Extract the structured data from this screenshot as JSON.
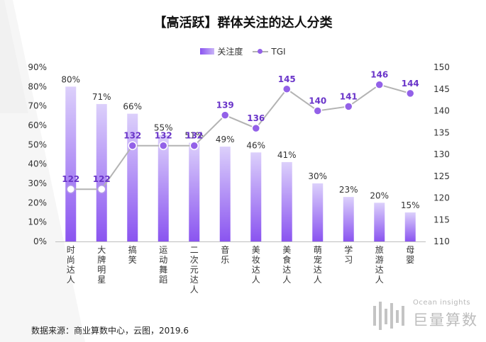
{
  "title": "【高活跃】群体关注的达人分类",
  "legend": {
    "bar_label": "关注度",
    "line_label": "TGI"
  },
  "source": "数据来源：商业算数中心，云图，2019.6",
  "watermark": {
    "en": "Ocean insights",
    "cn": "巨量算数"
  },
  "colors": {
    "bar_top": "#8a54f0",
    "bar_light": "#dcd0fb",
    "line": "#b3b3b3",
    "marker": "#9361e8",
    "tgi_label": "#6a35c9"
  },
  "chart_data": {
    "type": "bar",
    "categories": [
      "时尚达人",
      "大牌明星",
      "搞笑",
      "运动舞蹈",
      "二次元达人",
      "音乐",
      "美妆达人",
      "美食达人",
      "萌宠达人",
      "学习",
      "旅游达人",
      "母婴"
    ],
    "series": [
      {
        "name": "关注度",
        "type": "bar",
        "axis": "left",
        "values": [
          80,
          71,
          66,
          55,
          51,
          49,
          46,
          41,
          30,
          23,
          20,
          15
        ],
        "labels": [
          "80%",
          "71%",
          "66%",
          "55%",
          "51%",
          "49%",
          "46%",
          "41%",
          "30%",
          "23%",
          "20%",
          "15%"
        ]
      },
      {
        "name": "TGI",
        "type": "line",
        "axis": "right",
        "values": [
          122,
          122,
          132,
          132,
          132,
          139,
          136,
          145,
          140,
          141,
          146,
          144
        ],
        "labels": [
          "122",
          "122",
          "132",
          "132",
          "132",
          "139",
          "136",
          "145",
          "140",
          "141",
          "146",
          "144"
        ]
      }
    ],
    "y_left": {
      "ylim": [
        0,
        90
      ],
      "ticks": [
        "0%",
        "10%",
        "20%",
        "30%",
        "40%",
        "50%",
        "60%",
        "70%",
        "80%",
        "90%"
      ]
    },
    "y_right": {
      "ylim": [
        110,
        150
      ],
      "ticks": [
        "110",
        "115",
        "120",
        "125",
        "130",
        "135",
        "140",
        "145",
        "150"
      ]
    },
    "grid": false,
    "legend_position": "top-center"
  }
}
